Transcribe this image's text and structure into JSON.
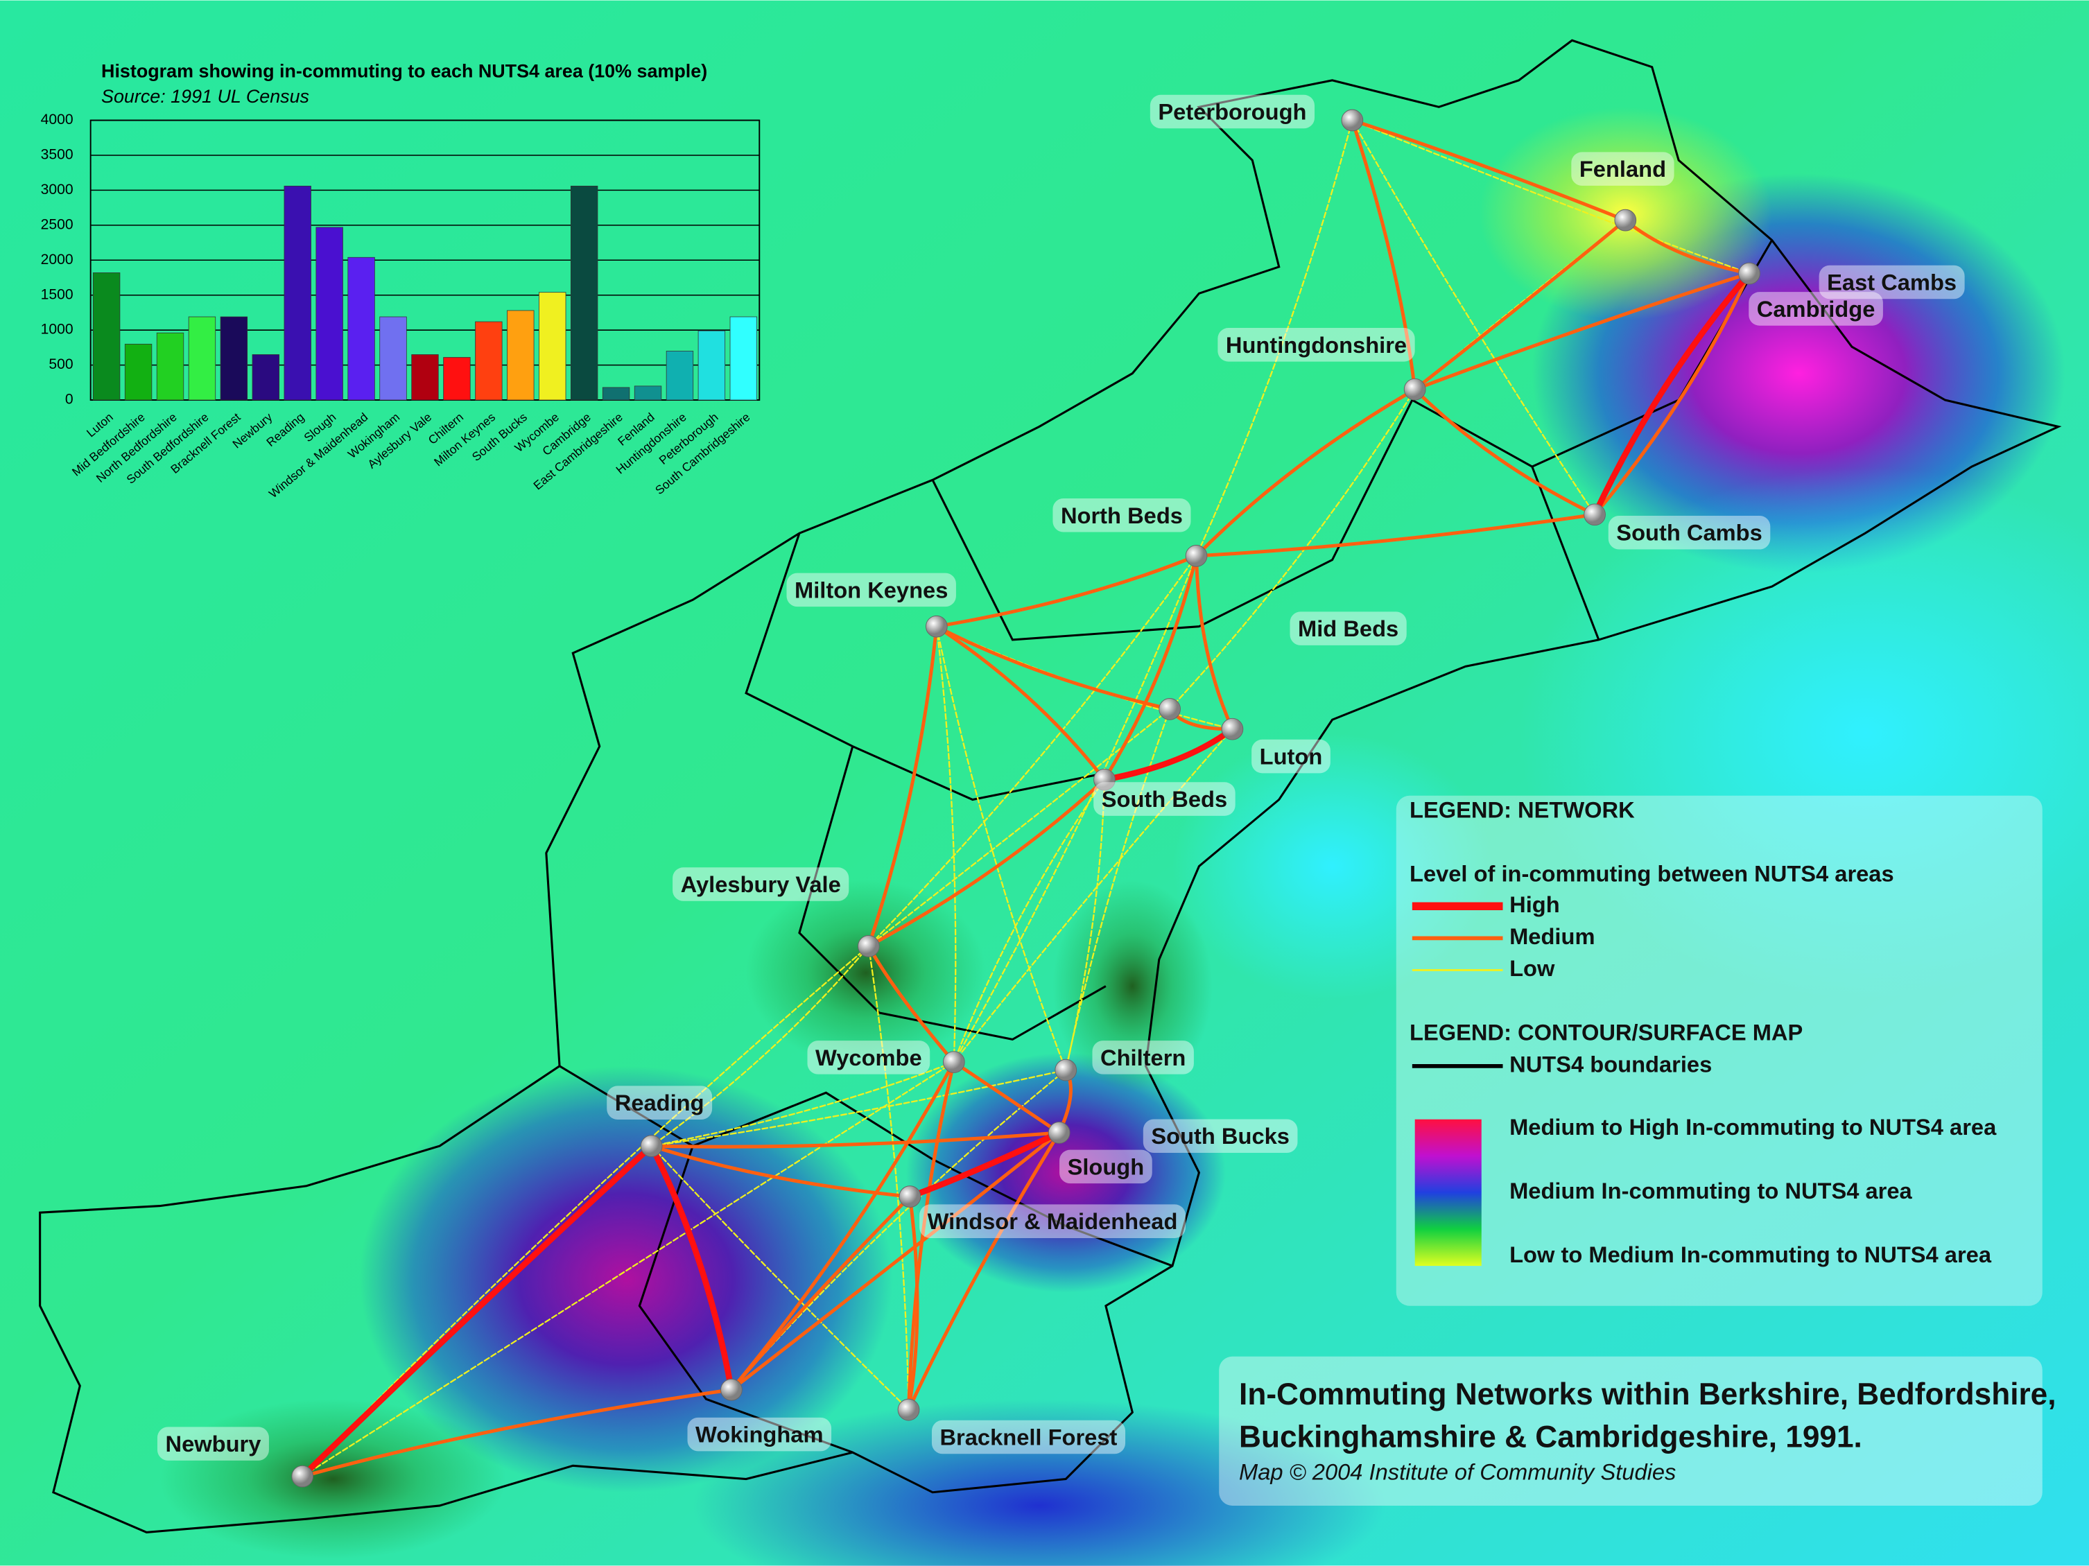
{
  "chart_data": {
    "type": "bar",
    "title": "Histogram showing in-commuting to each NUTS4 area (10% sample)",
    "subtitle": "Source: 1991 UL Census",
    "categories": [
      "Luton",
      "Mid Bedfordshire",
      "North Bedfordshire",
      "South Bedfordshire",
      "Bracknell Forest",
      "Newbury",
      "Reading",
      "Slough",
      "Windsor & Maidenhead",
      "Wokingham",
      "Aylesbury Vale",
      "Chiltern",
      "Milton Keynes",
      "South Bucks",
      "Wycombe",
      "Cambridge",
      "East Cambridgeshire",
      "Fenland",
      "Huntingdonshire",
      "Peterborough",
      "South Cambridgeshire"
    ],
    "values": [
      1820,
      800,
      960,
      1190,
      1190,
      650,
      3060,
      2470,
      2040,
      1190,
      650,
      610,
      1120,
      1280,
      1540,
      3060,
      180,
      200,
      700,
      990,
      1190
    ],
    "colors": [
      "#0a8a1e",
      "#12b012",
      "#22d022",
      "#33ee44",
      "#1a0a5a",
      "#2a0a80",
      "#3a10b0",
      "#4a10d0",
      "#5a20f0",
      "#7070f0",
      "#b00010",
      "#ff1010",
      "#ff4010",
      "#ffa010",
      "#f0f020",
      "#0a4a40",
      "#107070",
      "#109090",
      "#10b0b0",
      "#20e0e0",
      "#30ffff"
    ],
    "ylim": [
      0,
      4000
    ],
    "yticks": [
      0,
      500,
      1000,
      1500,
      2000,
      2500,
      3000,
      3500,
      4000
    ],
    "grid": true
  },
  "map": {
    "places": [
      "Peterborough",
      "Fenland",
      "East Cambs",
      "Cambridge",
      "Huntingdonshire",
      "South Cambs",
      "North Beds",
      "Milton Keynes",
      "Mid Beds",
      "Luton",
      "South Beds",
      "Aylesbury Vale",
      "Wycombe",
      "Chiltern",
      "Reading",
      "South Bucks",
      "Slough",
      "Windsor & Maidenhead",
      "Newbury",
      "Wokingham",
      "Bracknell Forest"
    ],
    "legend": {
      "network_title": "LEGEND: NETWORK",
      "network_subtitle": "Level of in-commuting between NUTS4 areas",
      "levels": [
        "High",
        "Medium",
        "Low"
      ],
      "surface_title": "LEGEND: CONTOUR/SURFACE MAP",
      "boundaries": "NUTS4 boundaries",
      "surface_levels": [
        "Medium to High In-commuting to NUTS4 area",
        "Medium In-commuting to NUTS4 area",
        "Low to Medium In-commuting to NUTS4 area"
      ]
    },
    "title": {
      "line1": "In-Commuting Networks within Berkshire, Bedfordshire,",
      "line2": "Buckinghamshire & Cambridgeshire, 1991.",
      "credit": "Map © 2004 Institute of Community Studies"
    }
  }
}
